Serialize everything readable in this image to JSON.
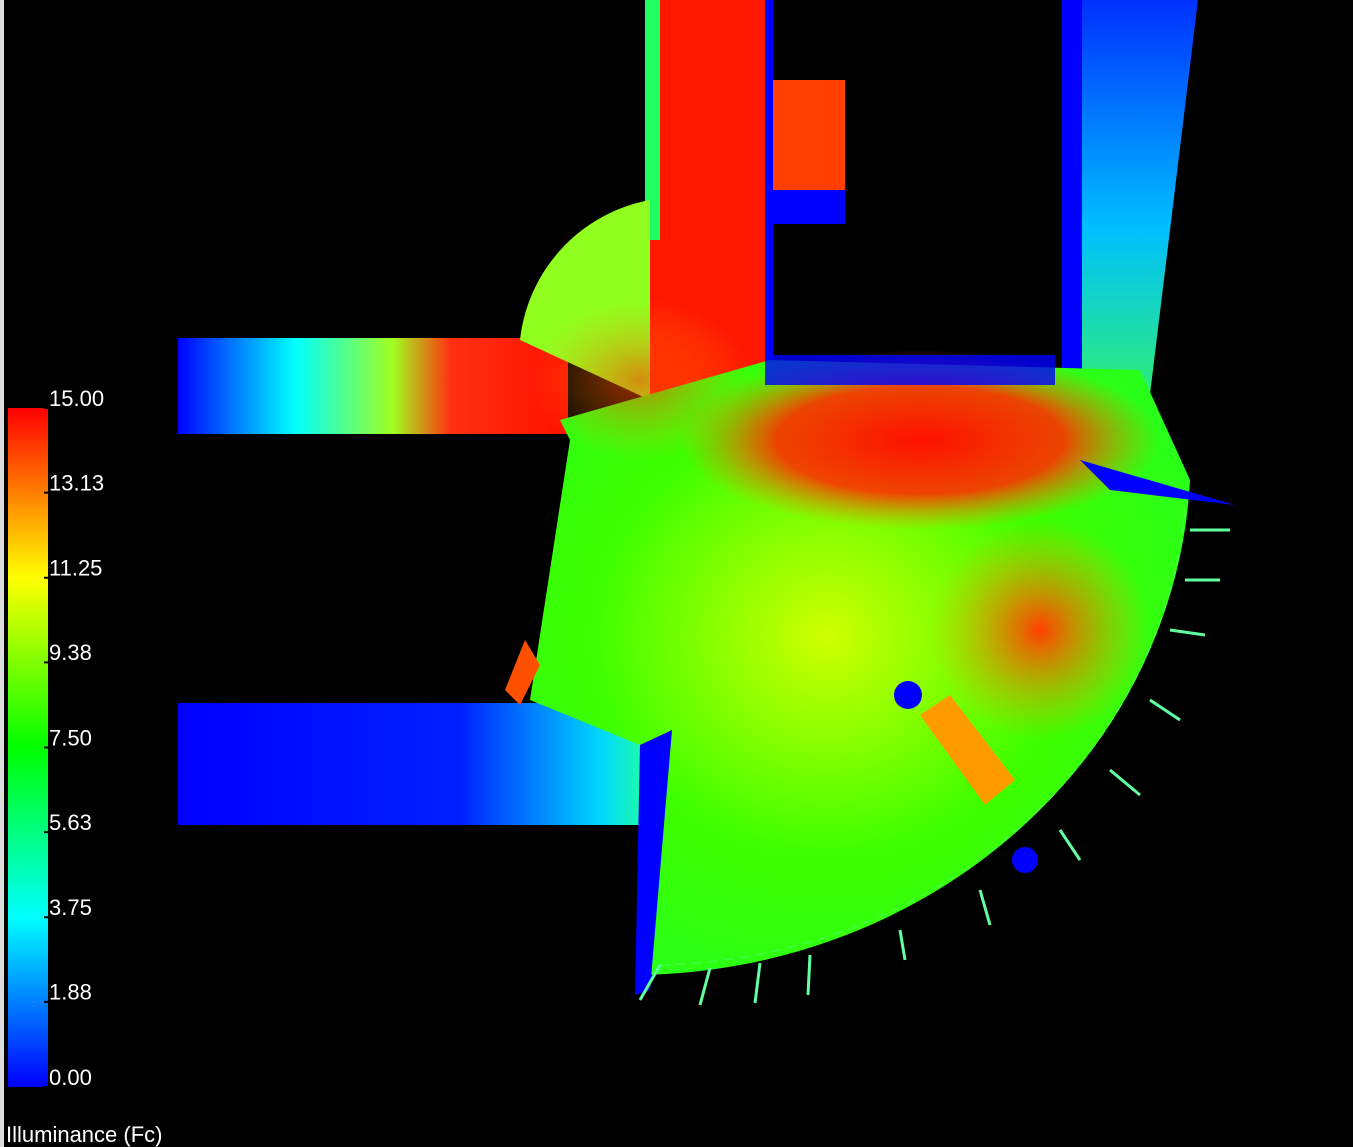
{
  "legend": {
    "title": "Illuminance (Fc)",
    "range": [
      0,
      15
    ],
    "ticks": [
      {
        "value": 15,
        "label": "15.00"
      },
      {
        "value": 13.13,
        "label": "13.13"
      },
      {
        "value": 11.25,
        "label": "11.25"
      },
      {
        "value": 9.38,
        "label": "9.38"
      },
      {
        "value": 7.5,
        "label": "7.50"
      },
      {
        "value": 5.63,
        "label": "5.63"
      },
      {
        "value": 3.75,
        "label": "3.75"
      },
      {
        "value": 1.88,
        "label": "1.88"
      },
      {
        "value": 0,
        "label": "0.00"
      }
    ]
  }
}
